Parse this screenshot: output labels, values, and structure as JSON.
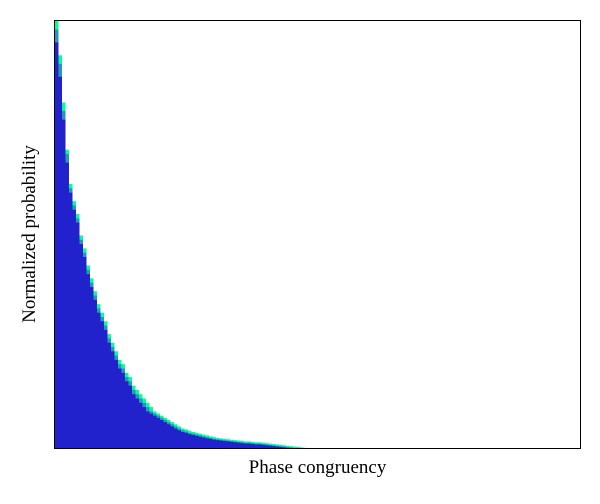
{
  "chart_data": {
    "type": "bar",
    "xlabel": "Phase congruency",
    "ylabel": "Normalized probability",
    "ylim": [
      0,
      1
    ],
    "series": [
      {
        "color": "#00ff99",
        "values": [
          1.0,
          0.92,
          0.81,
          0.7,
          0.62,
          0.58,
          0.55,
          0.5,
          0.47,
          0.43,
          0.4,
          0.37,
          0.34,
          0.32,
          0.3,
          0.27,
          0.25,
          0.23,
          0.21,
          0.2,
          0.18,
          0.17,
          0.15,
          0.14,
          0.13,
          0.12,
          0.11,
          0.1,
          0.09,
          0.085,
          0.08,
          0.075,
          0.07,
          0.065,
          0.06,
          0.055,
          0.05,
          0.048,
          0.045,
          0.042,
          0.04,
          0.038,
          0.036,
          0.034,
          0.032,
          0.03,
          0.028,
          0.027,
          0.026,
          0.025,
          0.024,
          0.023,
          0.022,
          0.021,
          0.02,
          0.02,
          0.019,
          0.018,
          0.018,
          0.017,
          0.016,
          0.015,
          0.014,
          0.013,
          0.012,
          0.011,
          0.01,
          0.009,
          0.008,
          0.007,
          0.006,
          0.005,
          0.004,
          0.003,
          0.002,
          0.001
        ]
      },
      {
        "color": "#2299bb",
        "values": [
          0.98,
          0.9,
          0.79,
          0.69,
          0.61,
          0.57,
          0.54,
          0.49,
          0.46,
          0.42,
          0.39,
          0.36,
          0.33,
          0.31,
          0.29,
          0.26,
          0.24,
          0.22,
          0.2,
          0.19,
          0.17,
          0.16,
          0.14,
          0.13,
          0.12,
          0.11,
          0.1,
          0.09,
          0.085,
          0.08,
          0.075,
          0.07,
          0.065,
          0.06,
          0.055,
          0.05,
          0.046,
          0.043,
          0.04,
          0.038,
          0.036,
          0.034,
          0.032,
          0.03,
          0.028,
          0.026,
          0.025,
          0.024,
          0.023,
          0.022,
          0.021,
          0.02,
          0.019,
          0.018,
          0.017,
          0.017,
          0.016,
          0.015,
          0.015,
          0.014,
          0.013,
          0.012,
          0.011,
          0.01,
          0.009,
          0.008,
          0.007,
          0.006,
          0.005,
          0.004,
          0.003,
          0.002,
          0.001,
          0.0,
          0.0,
          0.0
        ]
      },
      {
        "color": "#2222cc",
        "values": [
          0.95,
          0.87,
          0.77,
          0.67,
          0.6,
          0.56,
          0.53,
          0.48,
          0.45,
          0.41,
          0.38,
          0.35,
          0.32,
          0.3,
          0.28,
          0.25,
          0.23,
          0.21,
          0.19,
          0.18,
          0.16,
          0.15,
          0.13,
          0.12,
          0.11,
          0.1,
          0.09,
          0.085,
          0.08,
          0.075,
          0.07,
          0.065,
          0.06,
          0.055,
          0.05,
          0.046,
          0.042,
          0.04,
          0.037,
          0.035,
          0.033,
          0.031,
          0.029,
          0.027,
          0.026,
          0.024,
          0.023,
          0.022,
          0.021,
          0.02,
          0.019,
          0.018,
          0.017,
          0.016,
          0.015,
          0.015,
          0.014,
          0.013,
          0.013,
          0.012,
          0.011,
          0.01,
          0.009,
          0.008,
          0.007,
          0.006,
          0.005,
          0.004,
          0.003,
          0.002,
          0.001,
          0.0,
          0.0,
          0.0,
          0.0,
          0.0
        ]
      }
    ]
  }
}
